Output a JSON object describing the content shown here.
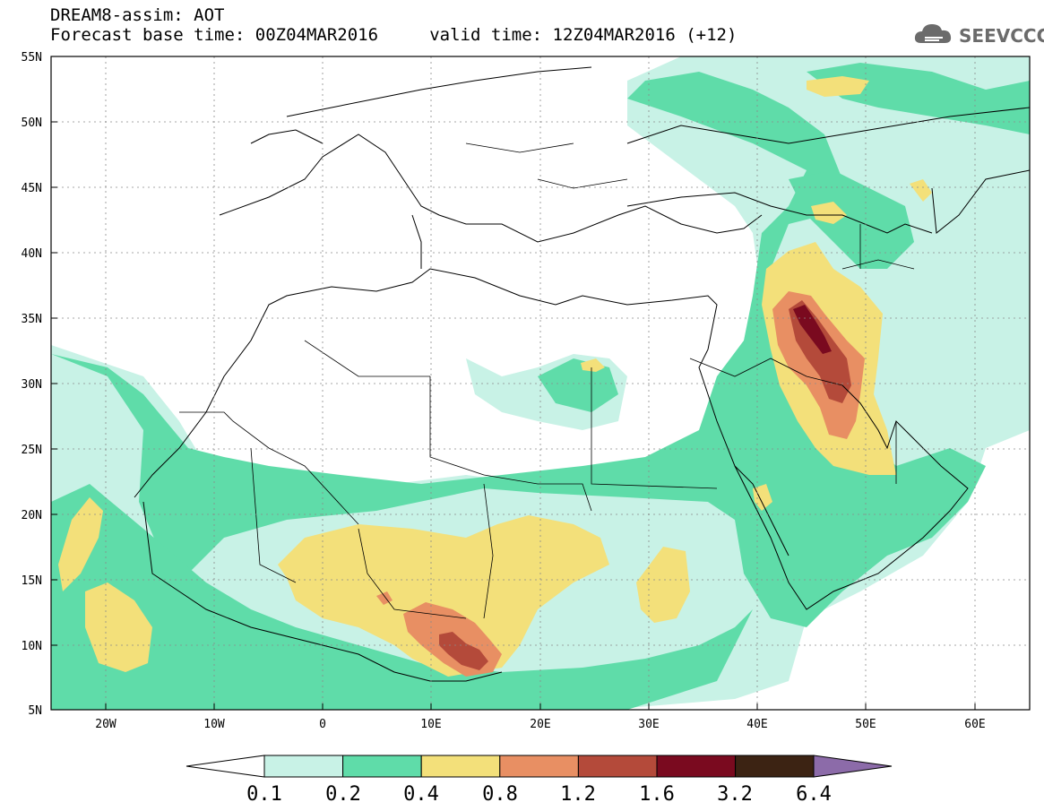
{
  "header": {
    "line1": "DREAM8-assim: AOT",
    "line2": "Forecast base time: 00Z04MAR2016     valid time: 12Z04MAR2016 (+12)"
  },
  "logo": {
    "text": "SEEVCCC",
    "icon": "cloud-icon"
  },
  "map": {
    "lon_range": [
      -25,
      65
    ],
    "lat_range": [
      5,
      55
    ],
    "grid": true,
    "lat_labels": [
      "55N",
      "50N",
      "45N",
      "40N",
      "35N",
      "30N",
      "25N",
      "20N",
      "15N",
      "10N",
      "5N"
    ],
    "lon_labels": [
      "20W",
      "10W",
      "0",
      "10E",
      "20E",
      "30E",
      "40E",
      "50E",
      "60E"
    ]
  },
  "colorbar": {
    "labels": [
      "0.1",
      "0.2",
      "0.4",
      "0.8",
      "1.2",
      "1.6",
      "3.2",
      "6.4"
    ],
    "colors": [
      "#ffffff",
      "#c8f2e6",
      "#5fdca9",
      "#f3e07a",
      "#e88f63",
      "#b44a3a",
      "#7a0a1f",
      "#3c2313",
      "#8c6ba9"
    ]
  }
}
